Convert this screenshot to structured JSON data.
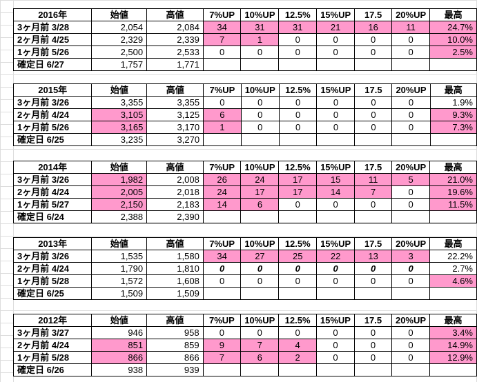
{
  "columns": [
    "始値",
    "高値",
    "7%UP",
    "10%UP",
    "12.5%",
    "15%UP",
    "17.5",
    "20%UP",
    "最高"
  ],
  "colors": {
    "highlight": "#ff99cc",
    "grid": "#dcdcdc"
  },
  "blocks": [
    {
      "year": "2016年",
      "rows": [
        {
          "label": "3ヶ月前  3/28",
          "open": "2,054",
          "high": "2,084",
          "c7": "34",
          "c10": "31",
          "c125": "31",
          "c15": "21",
          "c175": "16",
          "c20": "11",
          "max": "24.7%"
        },
        {
          "label": "2ヶ月前  4/25",
          "open": "2,329",
          "high": "2,339",
          "c7": "7",
          "c10": "1",
          "c125": "0",
          "c15": "0",
          "c175": "0",
          "c20": "0",
          "max": "10.0%"
        },
        {
          "label": "1ヶ月前  5/26",
          "open": "2,500",
          "high": "2,533",
          "c7": "0",
          "c10": "0",
          "c125": "0",
          "c15": "0",
          "c175": "0",
          "c20": "0",
          "max": "2.5%"
        },
        {
          "label": "確定日  6/27",
          "open": "1,757",
          "high": "1,771"
        }
      ]
    },
    {
      "year": "2015年",
      "rows": [
        {
          "label": "3ヶ月前  3/26",
          "open": "3,355",
          "high": "3,355",
          "c7": "0",
          "c10": "0",
          "c125": "0",
          "c15": "0",
          "c175": "0",
          "c20": "0",
          "max": "1.9%"
        },
        {
          "label": "2ヶ月前  4/24",
          "open": "3,105",
          "high": "3,125",
          "c7": "6",
          "c10": "0",
          "c125": "0",
          "c15": "0",
          "c175": "0",
          "c20": "0",
          "max": "9.3%"
        },
        {
          "label": "1ヶ月前  5/26",
          "open": "3,165",
          "high": "3,170",
          "c7": "1",
          "c10": "0",
          "c125": "0",
          "c15": "0",
          "c175": "0",
          "c20": "0",
          "max": "7.3%"
        },
        {
          "label": "確定日  6/25",
          "open": "3,235",
          "high": "3,270"
        }
      ]
    },
    {
      "year": "2014年",
      "rows": [
        {
          "label": "3ヶ月前  3/26",
          "open": "1,982",
          "high": "2,008",
          "c7": "26",
          "c10": "24",
          "c125": "17",
          "c15": "15",
          "c175": "11",
          "c20": "5",
          "max": "21.0%"
        },
        {
          "label": "2ヶ月前  4/24",
          "open": "2,005",
          "high": "2,018",
          "c7": "24",
          "c10": "17",
          "c125": "17",
          "c15": "14",
          "c175": "7",
          "c20": "0",
          "max": "19.6%"
        },
        {
          "label": "1ヶ月前  5/27",
          "open": "2,150",
          "high": "2,183",
          "c7": "14",
          "c10": "6",
          "c125": "0",
          "c15": "0",
          "c175": "0",
          "c20": "0",
          "max": "11.5%"
        },
        {
          "label": "確定日  6/24",
          "open": "2,388",
          "high": "2,390"
        }
      ]
    },
    {
      "year": "2013年",
      "rows": [
        {
          "label": "3ヶ月前  3/26",
          "open": "1,535",
          "high": "1,580",
          "c7": "34",
          "c10": "27",
          "c125": "25",
          "c15": "22",
          "c175": "13",
          "c20": "3",
          "max": "22.2%"
        },
        {
          "label": "2ヶ月前  4/24",
          "open": "1,790",
          "high": "1,810",
          "c7": "0",
          "c10": "0",
          "c125": "0",
          "c15": "0",
          "c175": "0",
          "c20": "0",
          "max": "2.7%"
        },
        {
          "label": "1ヶ月前  5/28",
          "open": "1,572",
          "high": "1,608",
          "c7": "0",
          "c10": "0",
          "c125": "0",
          "c15": "0",
          "c175": "0",
          "c20": "0",
          "max": "4.6%"
        },
        {
          "label": "確定日  6/25",
          "open": "1,509",
          "high": "1,509"
        }
      ]
    },
    {
      "year": "2012年",
      "rows": [
        {
          "label": "3ヶ月前  3/27",
          "open": "946",
          "high": "958",
          "c7": "0",
          "c10": "0",
          "c125": "0",
          "c15": "0",
          "c175": "0",
          "c20": "0",
          "max": "3.4%"
        },
        {
          "label": "2ヶ月前  4/24",
          "open": "851",
          "high": "859",
          "c7": "9",
          "c10": "7",
          "c125": "4",
          "c15": "0",
          "c175": "0",
          "c20": "0",
          "max": "14.9%"
        },
        {
          "label": "1ヶ月前  5/28",
          "open": "866",
          "high": "866",
          "c7": "7",
          "c10": "6",
          "c125": "2",
          "c15": "0",
          "c175": "0",
          "c20": "0",
          "max": "12.9%"
        },
        {
          "label": "確定日  6/26",
          "open": "938",
          "high": "939"
        }
      ]
    }
  ]
}
